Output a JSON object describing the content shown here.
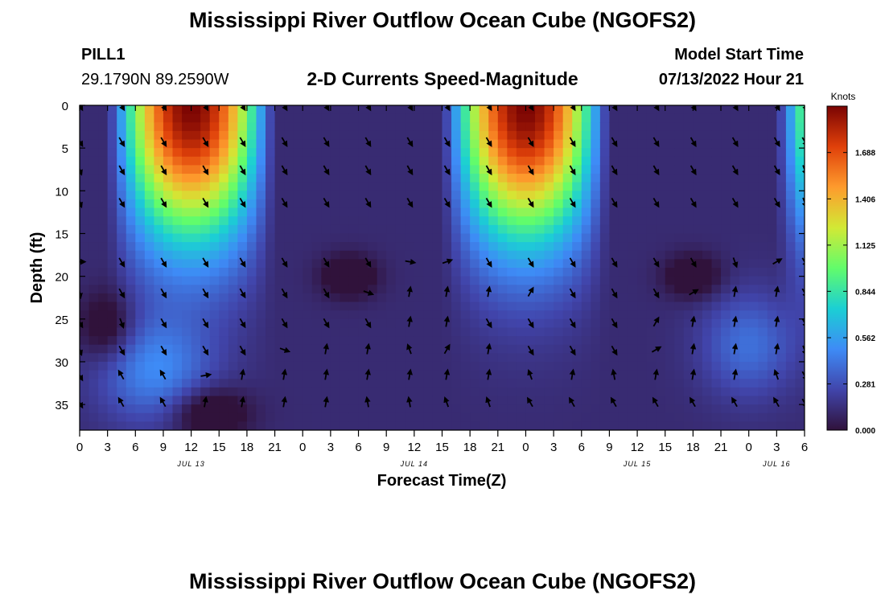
{
  "header": {
    "title": "Mississippi River Outflow Ocean Cube (NGOFS2)",
    "station": "PILL1",
    "location": "29.1790N  89.2590W",
    "subtitle": "2-D Currents Speed-Magnitude",
    "model_label": "Model Start Time",
    "model_time": "07/13/2022 Hour 21"
  },
  "footer": {
    "title": "Mississippi River Outflow Ocean Cube (NGOFS2)"
  },
  "colors": {
    "scale": [
      "#30123b",
      "#4145ab",
      "#3e8bf6",
      "#1bcfd4",
      "#62fc6b",
      "#d2e935",
      "#fe9b2d",
      "#e0400a",
      "#7a0403"
    ],
    "arrow": "#000000",
    "frame": "#000000"
  },
  "chart_data": {
    "type": "heatmap",
    "title": "2-D Currents Speed-Magnitude",
    "xlabel": "Forecast Time(Z)",
    "ylabel": "Depth (ft)",
    "colorbar_label": "Knots",
    "colorbar_ticks": [
      "0.000",
      "0.281",
      "0.562",
      "0.844",
      "1.125",
      "1.406",
      "1.688"
    ],
    "colorbar_range": [
      0,
      1.97
    ],
    "x_range_hours": [
      0,
      78
    ],
    "y_range": [
      0,
      38
    ],
    "y_ticks": [
      0,
      5,
      10,
      15,
      20,
      25,
      30,
      35
    ],
    "x_tick_labels": [
      "0",
      "3",
      "6",
      "9",
      "12",
      "15",
      "18",
      "21",
      "0",
      "3",
      "6",
      "9",
      "12",
      "15",
      "18",
      "21",
      "0",
      "3",
      "6",
      "9",
      "12",
      "15",
      "18",
      "21",
      "0",
      "3",
      "6"
    ],
    "date_labels": [
      {
        "label": "JUL 13",
        "hour": 12
      },
      {
        "label": "JUL 14",
        "hour": 36
      },
      {
        "label": "JUL 15",
        "hour": 60
      },
      {
        "label": "JUL 16",
        "hour": 75
      }
    ],
    "speed_maxima": [
      {
        "hour": 14,
        "depth": 2,
        "speed": 1.9
      },
      {
        "hour": 50,
        "depth": 2,
        "speed": 1.97
      }
    ],
    "arrow_hours": [
      0,
      4.5,
      9,
      13.5,
      17.5,
      22,
      26.5,
      31,
      35.5,
      39.5,
      44,
      48.5,
      53,
      57.5,
      62,
      66,
      70.5,
      75,
      78
    ],
    "arrow_depths": [
      0,
      4.2,
      7.5,
      11.3,
      18.3,
      21.9,
      25.4,
      28.6,
      31.6,
      34.8
    ],
    "arrow_directions_deg": [
      [
        150,
        150,
        150,
        150,
        150,
        150,
        150,
        150,
        150,
        150,
        150,
        150,
        150,
        150,
        150,
        150,
        150,
        150,
        150
      ],
      [
        150,
        150,
        150,
        150,
        150,
        150,
        150,
        150,
        150,
        150,
        150,
        150,
        150,
        150,
        150,
        150,
        150,
        150,
        150
      ],
      [
        160,
        150,
        150,
        150,
        150,
        150,
        150,
        150,
        150,
        150,
        150,
        150,
        150,
        150,
        150,
        150,
        150,
        150,
        160
      ],
      [
        160,
        150,
        150,
        150,
        150,
        150,
        150,
        150,
        150,
        150,
        150,
        150,
        150,
        150,
        150,
        150,
        150,
        150,
        160
      ],
      [
        90,
        150,
        150,
        150,
        150,
        150,
        150,
        150,
        100,
        70,
        150,
        150,
        150,
        150,
        150,
        150,
        160,
        60,
        150
      ],
      [
        170,
        150,
        150,
        150,
        150,
        150,
        150,
        110,
        10,
        10,
        10,
        30,
        150,
        150,
        150,
        60,
        10,
        10,
        150
      ],
      [
        150,
        160,
        150,
        150,
        150,
        150,
        150,
        150,
        10,
        10,
        150,
        150,
        150,
        150,
        30,
        10,
        10,
        10,
        150
      ],
      [
        160,
        150,
        150,
        150,
        150,
        110,
        10,
        10,
        340,
        30,
        10,
        150,
        150,
        150,
        60,
        10,
        10,
        10,
        160
      ],
      [
        150,
        330,
        330,
        80,
        10,
        10,
        10,
        10,
        10,
        10,
        10,
        340,
        10,
        350,
        10,
        10,
        10,
        340,
        150
      ],
      [
        150,
        330,
        330,
        10,
        10,
        10,
        10,
        350,
        350,
        340,
        340,
        330,
        330,
        330,
        330,
        330,
        330,
        330,
        150
      ]
    ]
  }
}
